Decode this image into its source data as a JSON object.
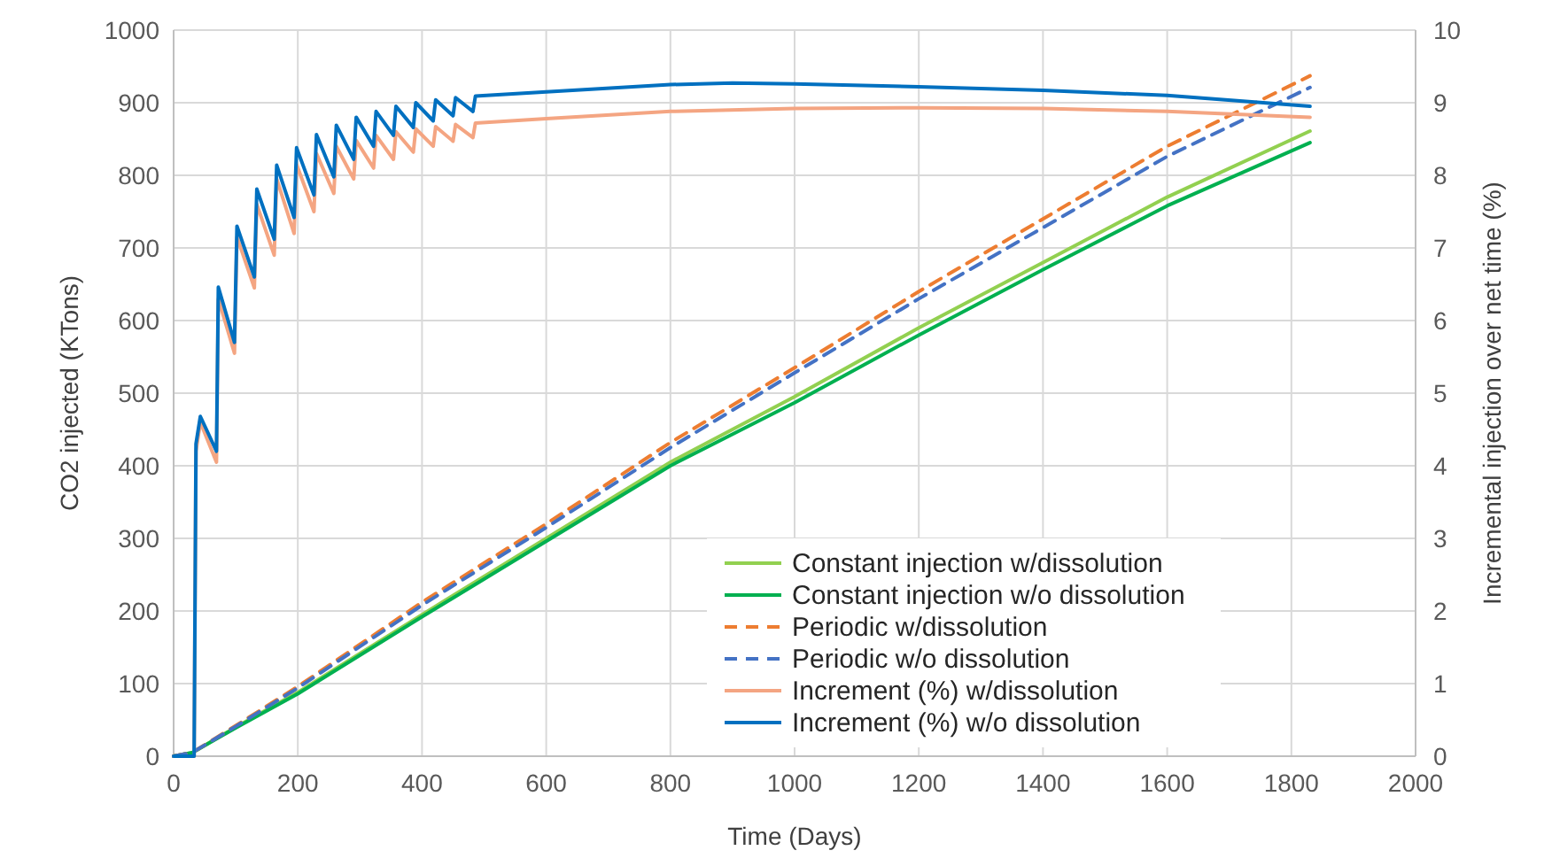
{
  "chart_data": {
    "type": "line",
    "xlabel": "Time (Days)",
    "ylabel": "CO2 injected (KTons)",
    "y2label": "Incremental injection over net time (%)",
    "xlim": [
      0,
      2000
    ],
    "xticks": [
      0,
      200,
      400,
      600,
      800,
      1000,
      1200,
      1400,
      1600,
      1800,
      2000
    ],
    "ylim": [
      0,
      1000
    ],
    "yticks": [
      0,
      100,
      200,
      300,
      400,
      500,
      600,
      700,
      800,
      900,
      1000
    ],
    "y2lim": [
      0,
      10
    ],
    "y2ticks": [
      0,
      1,
      2,
      3,
      4,
      5,
      6,
      7,
      8,
      9,
      10
    ],
    "grid": true,
    "legend": "bottom right",
    "series": [
      {
        "name": "Constant injection w/dissolution",
        "color": "#92d050",
        "line_style": "solid",
        "x": [
          0,
          30,
          100,
          200,
          400,
          600,
          800,
          1000,
          1200,
          1400,
          1600,
          1830
        ],
        "values": [
          0,
          5,
          40,
          88,
          195,
          300,
          405,
          495,
          590,
          680,
          770,
          861
        ]
      },
      {
        "name": "Constant injection w/o dissolution",
        "color": "#00b050",
        "line_style": "solid",
        "x": [
          0,
          30,
          100,
          200,
          400,
          600,
          800,
          1000,
          1200,
          1400,
          1600,
          1830
        ],
        "values": [
          0,
          5,
          39,
          86,
          192,
          296,
          400,
          487,
          580,
          670,
          758,
          845
        ]
      },
      {
        "name": "Periodic w/dissolution",
        "color": "#ed7d31",
        "line_style": "dashed",
        "x": [
          0,
          30,
          100,
          200,
          400,
          600,
          800,
          1000,
          1200,
          1400,
          1600,
          1830
        ],
        "values": [
          0,
          5,
          42,
          96,
          212,
          320,
          432,
          535,
          640,
          740,
          840,
          937
        ]
      },
      {
        "name": "Periodic w/o dissolution",
        "color": "#4472c4",
        "line_style": "dashed",
        "x": [
          0,
          30,
          100,
          200,
          400,
          600,
          800,
          1000,
          1200,
          1400,
          1600,
          1830
        ],
        "values": [
          0,
          5,
          41,
          94,
          208,
          315,
          425,
          528,
          630,
          728,
          826,
          921
        ]
      },
      {
        "name": "Increment (%) w/dissolution",
        "color": "#f4a582",
        "line_style": "solid",
        "axis": "y2",
        "x": [
          0,
          33,
          36,
          43,
          69,
          72,
          98,
          102,
          130,
          134,
          162,
          166,
          194,
          198,
          226,
          230,
          258,
          262,
          290,
          294,
          322,
          326,
          354,
          358,
          386,
          390,
          418,
          422,
          450,
          454,
          482,
          486,
          600,
          800,
          1000,
          1200,
          1400,
          1600,
          1830
        ],
        "values": [
          0,
          0,
          4.2,
          4.6,
          4.05,
          6.3,
          5.55,
          7.15,
          6.45,
          7.6,
          6.9,
          7.95,
          7.2,
          8.15,
          7.5,
          8.3,
          7.75,
          8.4,
          7.95,
          8.48,
          8.1,
          8.55,
          8.22,
          8.6,
          8.32,
          8.64,
          8.4,
          8.67,
          8.47,
          8.7,
          8.52,
          8.72,
          8.78,
          8.88,
          8.92,
          8.93,
          8.92,
          8.88,
          8.8
        ]
      },
      {
        "name": "Increment (%) w/o dissolution",
        "color": "#0070c0",
        "line_style": "solid",
        "axis": "y2",
        "x": [
          0,
          33,
          36,
          43,
          69,
          72,
          98,
          102,
          130,
          134,
          162,
          166,
          194,
          198,
          226,
          230,
          258,
          262,
          290,
          294,
          322,
          326,
          354,
          358,
          386,
          390,
          418,
          422,
          450,
          454,
          482,
          486,
          600,
          800,
          900,
          1000,
          1200,
          1400,
          1600,
          1830
        ],
        "values": [
          0,
          0,
          4.3,
          4.68,
          4.2,
          6.46,
          5.7,
          7.3,
          6.6,
          7.81,
          7.12,
          8.14,
          7.42,
          8.38,
          7.73,
          8.56,
          7.98,
          8.69,
          8.22,
          8.8,
          8.4,
          8.88,
          8.55,
          8.95,
          8.66,
          9.0,
          8.75,
          9.04,
          8.82,
          9.07,
          8.88,
          9.09,
          9.15,
          9.25,
          9.27,
          9.26,
          9.22,
          9.17,
          9.1,
          8.95
        ]
      }
    ]
  }
}
